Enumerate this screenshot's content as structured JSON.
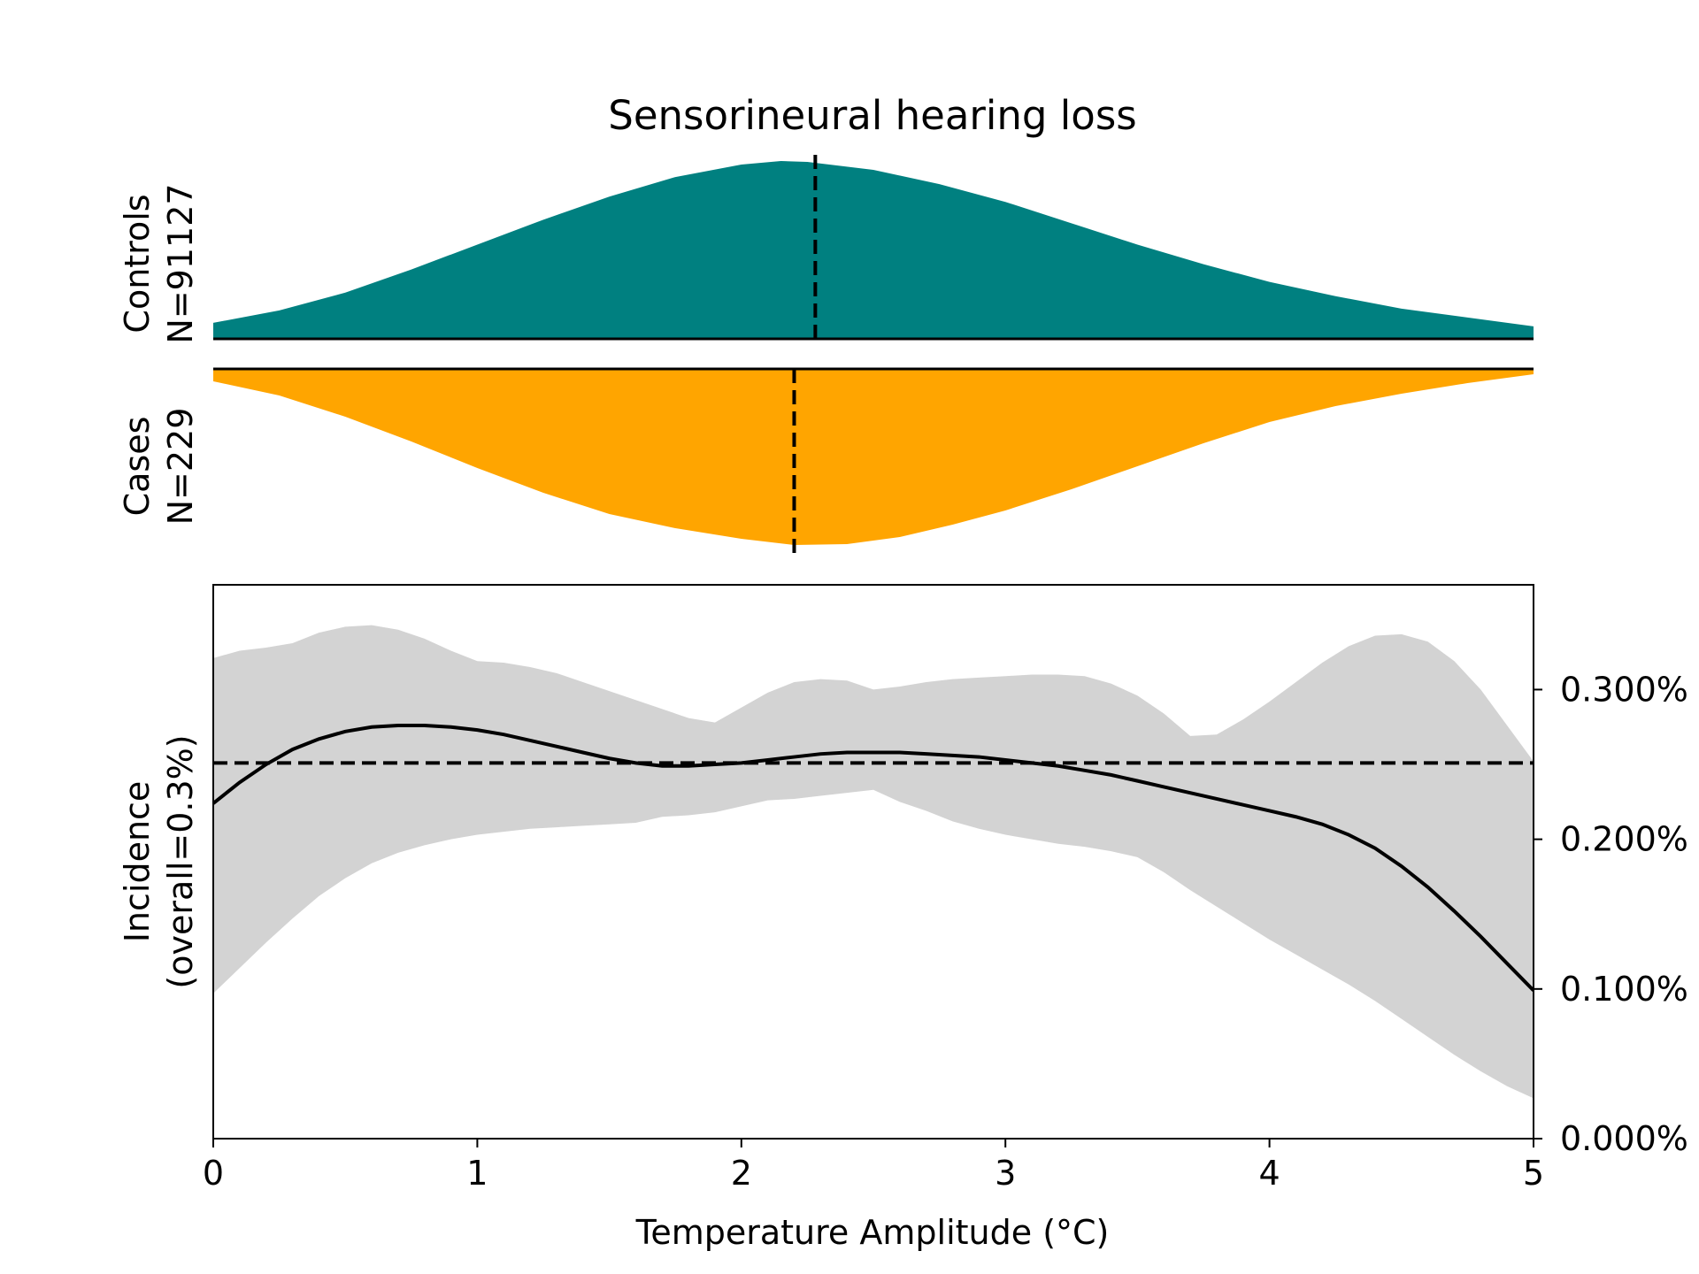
{
  "chart_data": {
    "type": "area",
    "title": "Sensorineural hearing loss",
    "xlabel": "Temperature Amplitude (°C)",
    "xlim": [
      0,
      5
    ],
    "x_ticks": [
      "0",
      "1",
      "2",
      "3",
      "4",
      "5"
    ],
    "controls": {
      "label": "Controls",
      "n_label": "N=91127",
      "color": "#008080",
      "median": 2.28,
      "density_x": [
        0,
        0.25,
        0.5,
        0.75,
        1.0,
        1.25,
        1.5,
        1.75,
        2.0,
        2.15,
        2.25,
        2.5,
        2.75,
        3.0,
        3.25,
        3.5,
        3.75,
        4.0,
        4.25,
        4.5,
        4.75,
        5.0
      ],
      "density_y": [
        0.09,
        0.16,
        0.26,
        0.39,
        0.53,
        0.67,
        0.8,
        0.91,
        0.98,
        1.0,
        0.995,
        0.95,
        0.87,
        0.77,
        0.65,
        0.53,
        0.42,
        0.32,
        0.24,
        0.17,
        0.12,
        0.07
      ]
    },
    "cases": {
      "label": "Cases",
      "n_label": "N=229",
      "color": "#FFA500",
      "median": 2.2,
      "density_x": [
        0,
        0.25,
        0.5,
        0.75,
        1.0,
        1.25,
        1.5,
        1.75,
        2.0,
        2.2,
        2.4,
        2.6,
        2.8,
        3.0,
        3.25,
        3.5,
        3.75,
        4.0,
        4.25,
        4.5,
        4.75,
        5.0
      ],
      "density_y": [
        0.07,
        0.15,
        0.27,
        0.41,
        0.56,
        0.7,
        0.82,
        0.9,
        0.96,
        0.995,
        0.99,
        0.95,
        0.88,
        0.8,
        0.68,
        0.55,
        0.42,
        0.3,
        0.21,
        0.14,
        0.08,
        0.03
      ]
    },
    "incidence": {
      "ylabel_line1": "Incidence",
      "ylabel_line2": "(overall=0.3%)",
      "ylim": [
        0,
        0.0037
      ],
      "y_ticks": [
        0.0,
        0.001,
        0.002,
        0.003
      ],
      "y_tick_labels": [
        "0.000%",
        "0.100%",
        "0.200%",
        "0.300%"
      ],
      "overall": 0.00251,
      "line_color": "#000000",
      "band_color": "#d3d3d3",
      "x": [
        0,
        0.1,
        0.2,
        0.3,
        0.4,
        0.5,
        0.6,
        0.7,
        0.8,
        0.9,
        1.0,
        1.1,
        1.2,
        1.3,
        1.4,
        1.5,
        1.6,
        1.7,
        1.8,
        1.9,
        2.0,
        2.1,
        2.2,
        2.3,
        2.4,
        2.5,
        2.6,
        2.7,
        2.8,
        2.9,
        3.0,
        3.1,
        3.2,
        3.3,
        3.4,
        3.5,
        3.6,
        3.7,
        3.8,
        3.9,
        4.0,
        4.1,
        4.2,
        4.3,
        4.4,
        4.5,
        4.6,
        4.7,
        4.8,
        4.9,
        5.0
      ],
      "y": [
        0.00224,
        0.00238,
        0.0025,
        0.0026,
        0.00267,
        0.00272,
        0.00275,
        0.00276,
        0.00276,
        0.00275,
        0.00273,
        0.0027,
        0.00266,
        0.00262,
        0.00258,
        0.00254,
        0.00251,
        0.00249,
        0.00249,
        0.0025,
        0.00251,
        0.00253,
        0.00255,
        0.00257,
        0.00258,
        0.00258,
        0.00258,
        0.00257,
        0.00256,
        0.00255,
        0.00253,
        0.00251,
        0.00249,
        0.00246,
        0.00243,
        0.00239,
        0.00235,
        0.00231,
        0.00227,
        0.00223,
        0.00219,
        0.00215,
        0.0021,
        0.00203,
        0.00194,
        0.00182,
        0.00168,
        0.00152,
        0.00135,
        0.00117,
        0.00099
      ],
      "upper": [
        0.00321,
        0.00326,
        0.00328,
        0.00331,
        0.00338,
        0.00342,
        0.00343,
        0.0034,
        0.00334,
        0.00326,
        0.00319,
        0.00318,
        0.00315,
        0.00311,
        0.00305,
        0.00299,
        0.00293,
        0.00287,
        0.00281,
        0.00278,
        0.00288,
        0.00298,
        0.00305,
        0.00307,
        0.00306,
        0.003,
        0.00302,
        0.00305,
        0.00307,
        0.00308,
        0.00309,
        0.0031,
        0.0031,
        0.00309,
        0.00304,
        0.00296,
        0.00284,
        0.00269,
        0.0027,
        0.0028,
        0.00292,
        0.00305,
        0.00318,
        0.00329,
        0.00336,
        0.00337,
        0.00332,
        0.00319,
        0.003,
        0.00276,
        0.00252
      ],
      "lower": [
        0.00097,
        0.00114,
        0.00131,
        0.00147,
        0.00162,
        0.00174,
        0.00184,
        0.00191,
        0.00196,
        0.002,
        0.00203,
        0.00205,
        0.00207,
        0.00208,
        0.00209,
        0.0021,
        0.00211,
        0.00215,
        0.00216,
        0.00218,
        0.00222,
        0.00226,
        0.00227,
        0.00229,
        0.00231,
        0.00233,
        0.00225,
        0.00219,
        0.00212,
        0.00207,
        0.00203,
        0.002,
        0.00197,
        0.00195,
        0.00192,
        0.00188,
        0.00178,
        0.00166,
        0.00155,
        0.00144,
        0.00133,
        0.00123,
        0.00113,
        0.00103,
        0.00092,
        0.0008,
        0.00068,
        0.00056,
        0.00045,
        0.00035,
        0.00027
      ]
    }
  }
}
